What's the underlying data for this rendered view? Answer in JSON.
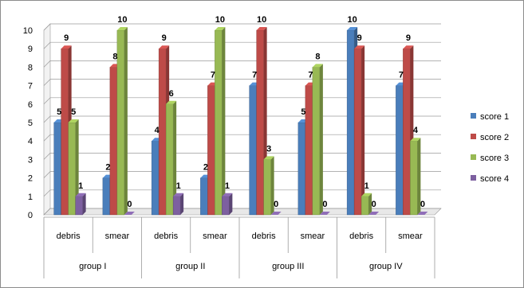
{
  "chart_data": {
    "type": "bar",
    "style": "3d-clustered-column",
    "title": "",
    "xlabel": "",
    "ylabel": "",
    "ylim": [
      0,
      10
    ],
    "yticks": [
      0,
      1,
      2,
      3,
      4,
      5,
      6,
      7,
      8,
      9,
      10
    ],
    "grid": true,
    "legend_position": "right",
    "groups": [
      {
        "label": "group I",
        "categories": [
          "debris",
          "smear"
        ]
      },
      {
        "label": "group II",
        "categories": [
          "debris",
          "smear"
        ]
      },
      {
        "label": "group III",
        "categories": [
          "debris",
          "smear"
        ]
      },
      {
        "label": "group IV",
        "categories": [
          "debris",
          "smear"
        ]
      }
    ],
    "categories": [
      "debris",
      "smear",
      "debris",
      "smear",
      "debris",
      "smear",
      "debris",
      "smear"
    ],
    "series": [
      {
        "name": "score 1",
        "color": "#4a7ebb",
        "values": [
          5,
          2,
          4,
          2,
          7,
          5,
          10,
          7
        ]
      },
      {
        "name": "score 2",
        "color": "#be4b48",
        "values": [
          9,
          8,
          9,
          7,
          10,
          7,
          9,
          9
        ]
      },
      {
        "name": "score 3",
        "color": "#98b954",
        "values": [
          5,
          10,
          6,
          10,
          3,
          8,
          1,
          4
        ]
      },
      {
        "name": "score 4",
        "color": "#7d60a0",
        "values": [
          1,
          0,
          1,
          1,
          0,
          0,
          0,
          0
        ]
      }
    ]
  }
}
